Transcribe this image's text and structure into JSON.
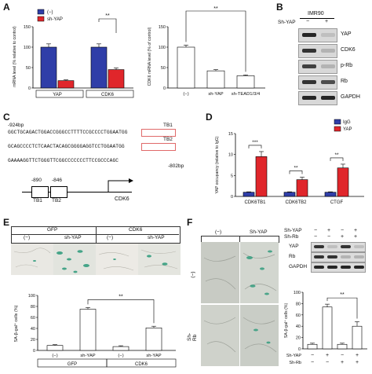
{
  "panels": {
    "A": "A",
    "B": "B",
    "C": "C",
    "D": "D",
    "E": "E",
    "F": "F"
  },
  "colors": {
    "blue": "#2f3ea8",
    "red": "#e0262b",
    "white": "#ffffff",
    "stain": "#2a9a7a"
  },
  "panel_a": {
    "legend": [
      "(−)",
      "sh-YAP"
    ],
    "ylabel1": "mRNA level (% relative to control)",
    "ylabel2": "CDK6 mRNA level (% of control)",
    "sig": "**",
    "yticks1": [
      "0",
      "50",
      "100",
      "150"
    ],
    "yticks2": [
      "0",
      "50",
      "100",
      "150"
    ]
  },
  "panel_b": {
    "cell_line": "IMR90",
    "row_label": "Sh-YAP",
    "lanes": [
      "−",
      "+"
    ],
    "bands": [
      "YAP",
      "CDK6",
      "p-Rb",
      "Rb",
      "GAPDH"
    ]
  },
  "panel_c": {
    "start": "-924bp",
    "line1": "GGCTGCAGACTGGACCGGGCCTTTTCCGCCCCTGGAATGG",
    "line2": "GCAGCCCCTCTCAACTACAGCGGGGAGGTCCTGGAATGG",
    "line3": "GAAAAGGTTCTGGGTTCGGCCCCCCCTTCCGCCCAGC",
    "end": "-802bp",
    "tb1": "TB1",
    "tb2": "TB2",
    "pos1": "-890",
    "pos2": "-846",
    "box1": "TB1",
    "box2": "TB2",
    "gene": "CDK6"
  },
  "panel_d": {
    "legend": [
      "IgG",
      "YAP"
    ],
    "ylabel": "YAP occupancy (relative to IgG)",
    "sig": [
      "***",
      "**",
      "**"
    ],
    "yticks": [
      "0",
      "5",
      "10",
      "15"
    ]
  },
  "panel_e": {
    "groups": [
      "GFP",
      "CDK6"
    ],
    "sub": [
      "(−)",
      "sh-YAP",
      "(−)",
      "sh-YAP"
    ],
    "ylabel": "SA-β-gal⁺ cells (%)",
    "sig": "**",
    "yticks": [
      "0",
      "20",
      "40",
      "60",
      "80",
      "100"
    ]
  },
  "panel_f": {
    "col_labels": [
      "(−)",
      "Sh-YAP"
    ],
    "row_labels": [
      "(−)",
      "Sh-Rb"
    ],
    "blot_rows": [
      "Sh-YAP",
      "Sh-Rb"
    ],
    "blot_signs": [
      [
        "−",
        "+",
        "−",
        "+"
      ],
      [
        "−",
        "−",
        "+",
        "+"
      ]
    ],
    "bands": [
      "YAP",
      "Rb",
      "GAPDH"
    ],
    "ylabel": "SA-β-gal⁺ cells (%)",
    "sig": "**",
    "yticks": [
      "0",
      "20",
      "40",
      "60",
      "80",
      "100"
    ],
    "x_rows": [
      "Sh-YAP",
      "Sh-Rb"
    ]
  },
  "chart_data": [
    {
      "type": "bar",
      "id": "A-left",
      "categories": [
        "YAP",
        "CDK6"
      ],
      "series": [
        {
          "name": "(−)",
          "values": [
            100,
            100
          ],
          "errors": [
            8,
            8
          ]
        },
        {
          "name": "sh-YAP",
          "values": [
            18,
            45
          ],
          "errors": [
            2,
            4
          ]
        }
      ],
      "ylabel": "mRNA level (% relative to control)",
      "ylim": [
        0,
        150
      ]
    },
    {
      "type": "bar",
      "id": "A-right",
      "categories": [
        "(−)",
        "sh-YAP",
        "sh-TEAD1/3/4"
      ],
      "values": [
        100,
        42,
        30
      ],
      "errors": [
        5,
        3,
        2
      ],
      "ylabel": "CDK6 mRNA level (% of control)",
      "ylim": [
        0,
        150
      ]
    },
    {
      "type": "bar",
      "id": "D",
      "categories": [
        "CDK6TB1",
        "CDK6TB2",
        "CTGF"
      ],
      "series": [
        {
          "name": "IgG",
          "values": [
            1,
            1,
            1
          ],
          "errors": [
            0.1,
            0.1,
            0.1
          ]
        },
        {
          "name": "YAP",
          "values": [
            9.5,
            4,
            6.8
          ],
          "errors": [
            1.2,
            0.6,
            0.9
          ]
        }
      ],
      "ylabel": "YAP occupancy (relative to IgG)",
      "ylim": [
        0,
        15
      ]
    },
    {
      "type": "bar",
      "id": "E",
      "categories": [
        "(−)",
        "sh-YAP",
        "(−)",
        "sh-YAP"
      ],
      "groups": [
        "GFP",
        "GFP",
        "CDK6",
        "CDK6"
      ],
      "values": [
        9,
        75,
        7,
        41
      ],
      "errors": [
        1.5,
        3,
        1.5,
        3
      ],
      "ylabel": "SA-β-gal⁺ cells (%)",
      "ylim": [
        0,
        100
      ]
    },
    {
      "type": "bar",
      "id": "F",
      "categories": [
        "1",
        "2",
        "3",
        "4"
      ],
      "values": [
        8,
        74,
        8,
        40
      ],
      "errors": [
        2,
        5,
        2,
        8
      ],
      "ylabel": "SA-β-gal⁺ cells (%)",
      "ylim": [
        0,
        100
      ]
    }
  ]
}
